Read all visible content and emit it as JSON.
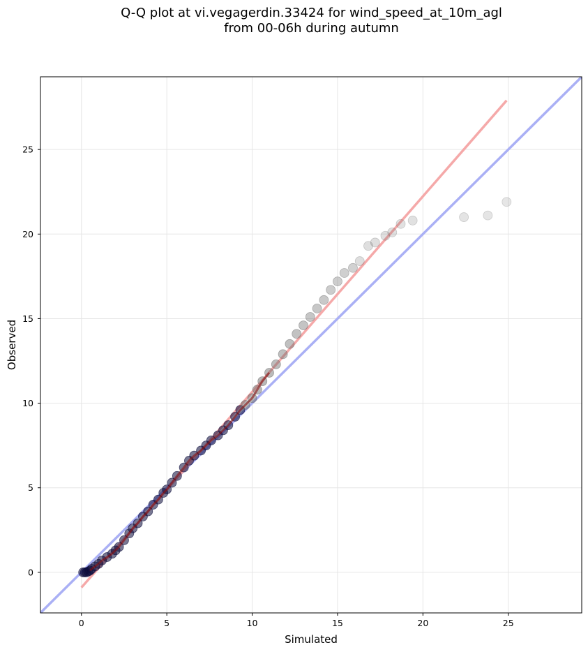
{
  "chart_data": {
    "type": "scatter",
    "title_lines": [
      "Q-Q plot at vi.vegagerdin.33424 for wind_speed_at_10m_agl",
      "from 00-06h during autumn"
    ],
    "xlabel": "Simulated",
    "ylabel": "Observed",
    "xlim": [
      -2.4,
      29.3
    ],
    "ylim": [
      -2.4,
      29.3
    ],
    "xticks": [
      0,
      5,
      10,
      15,
      20,
      25
    ],
    "yticks": [
      0,
      5,
      10,
      15,
      20,
      25
    ],
    "grid": true,
    "reference_lines": [
      {
        "kind": "identity",
        "color": "#aab0f5",
        "from": [
          -2.4,
          -2.4
        ],
        "to": [
          29.3,
          29.3
        ]
      },
      {
        "kind": "fit",
        "color": "#f5a9a9",
        "from": [
          0,
          -0.9
        ],
        "to": [
          24.9,
          27.9
        ]
      }
    ],
    "point_colors": {
      "core": "#0b0b3a",
      "center_highlight": "#8b1010",
      "tail": "#6a6a6a"
    },
    "points": [
      [
        0.1,
        0.0
      ],
      [
        0.2,
        0.0
      ],
      [
        0.3,
        0.0
      ],
      [
        0.4,
        0.05
      ],
      [
        0.5,
        0.1
      ],
      [
        0.6,
        0.2
      ],
      [
        0.8,
        0.35
      ],
      [
        1.0,
        0.5
      ],
      [
        1.2,
        0.7
      ],
      [
        1.5,
        0.9
      ],
      [
        1.8,
        1.1
      ],
      [
        2.0,
        1.3
      ],
      [
        2.2,
        1.5
      ],
      [
        2.5,
        1.9
      ],
      [
        2.8,
        2.3
      ],
      [
        3.0,
        2.6
      ],
      [
        3.3,
        2.9
      ],
      [
        3.6,
        3.3
      ],
      [
        3.9,
        3.6
      ],
      [
        4.2,
        4.0
      ],
      [
        4.5,
        4.3
      ],
      [
        4.8,
        4.7
      ],
      [
        5.0,
        4.9
      ],
      [
        5.3,
        5.3
      ],
      [
        5.6,
        5.7
      ],
      [
        6.0,
        6.2
      ],
      [
        6.3,
        6.6
      ],
      [
        6.6,
        6.9
      ],
      [
        7.0,
        7.2
      ],
      [
        7.3,
        7.5
      ],
      [
        7.6,
        7.8
      ],
      [
        8.0,
        8.1
      ],
      [
        8.3,
        8.4
      ],
      [
        8.6,
        8.7
      ],
      [
        9.0,
        9.2
      ],
      [
        9.3,
        9.6
      ],
      [
        9.6,
        9.9
      ],
      [
        10.0,
        10.3
      ],
      [
        10.3,
        10.8
      ],
      [
        10.6,
        11.3
      ],
      [
        11.0,
        11.8
      ],
      [
        11.4,
        12.3
      ],
      [
        11.8,
        12.9
      ],
      [
        12.2,
        13.5
      ],
      [
        12.6,
        14.1
      ],
      [
        13.0,
        14.6
      ],
      [
        13.4,
        15.1
      ],
      [
        13.8,
        15.6
      ],
      [
        14.2,
        16.1
      ],
      [
        14.6,
        16.7
      ],
      [
        15.0,
        17.2
      ],
      [
        15.4,
        17.7
      ],
      [
        15.9,
        18.0
      ],
      [
        16.3,
        18.4
      ],
      [
        16.8,
        19.3
      ],
      [
        17.2,
        19.5
      ],
      [
        17.8,
        19.9
      ],
      [
        18.2,
        20.1
      ],
      [
        18.7,
        20.6
      ],
      [
        19.4,
        20.8
      ],
      [
        22.4,
        21.0
      ],
      [
        23.8,
        21.1
      ],
      [
        24.9,
        21.9
      ]
    ]
  }
}
